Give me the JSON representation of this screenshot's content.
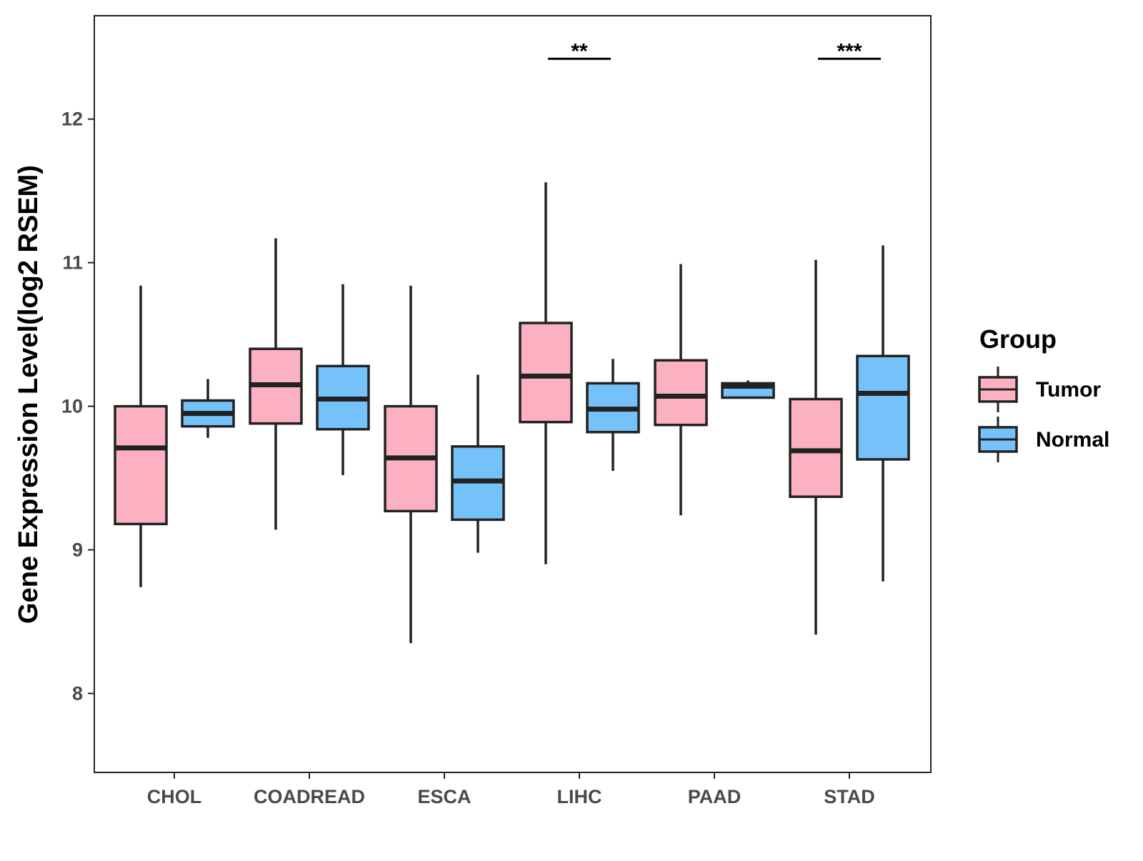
{
  "chart_data": {
    "type": "boxplot",
    "title": "",
    "xlabel": "",
    "ylabel": "Gene Expression Level(log2 RSEM)",
    "ylim": [
      7.45,
      12.72
    ],
    "yticks": [
      8,
      9,
      10,
      11,
      12
    ],
    "categories": [
      "CHOL",
      "COADREAD",
      "ESCA",
      "LIHC",
      "PAAD",
      "STAD"
    ],
    "legend": {
      "title": "Group",
      "position": "right",
      "entries": [
        "Tumor",
        "Normal"
      ]
    },
    "colors": {
      "Tumor": "#FBB1C1",
      "Normal": "#75C1F9",
      "stroke": "#222222"
    },
    "series": [
      {
        "name": "Tumor",
        "boxes": [
          {
            "category": "CHOL",
            "min": 8.74,
            "q1": 9.18,
            "median": 9.71,
            "q3": 10.0,
            "max": 10.84
          },
          {
            "category": "COADREAD",
            "min": 9.14,
            "q1": 9.88,
            "median": 10.15,
            "q3": 10.4,
            "max": 11.17
          },
          {
            "category": "ESCA",
            "min": 8.35,
            "q1": 9.27,
            "median": 9.64,
            "q3": 10.0,
            "max": 10.84
          },
          {
            "category": "LIHC",
            "min": 8.9,
            "q1": 9.89,
            "median": 10.21,
            "q3": 10.58,
            "max": 11.56
          },
          {
            "category": "PAAD",
            "min": 9.24,
            "q1": 9.87,
            "median": 10.07,
            "q3": 10.32,
            "max": 10.99
          },
          {
            "category": "STAD",
            "min": 8.41,
            "q1": 9.37,
            "median": 9.69,
            "q3": 10.05,
            "max": 11.02
          }
        ]
      },
      {
        "name": "Normal",
        "boxes": [
          {
            "category": "CHOL",
            "min": 9.78,
            "q1": 9.86,
            "median": 9.95,
            "q3": 10.04,
            "max": 10.19
          },
          {
            "category": "COADREAD",
            "min": 9.52,
            "q1": 9.84,
            "median": 10.05,
            "q3": 10.28,
            "max": 10.85
          },
          {
            "category": "ESCA",
            "min": 8.98,
            "q1": 9.21,
            "median": 9.48,
            "q3": 9.72,
            "max": 10.22
          },
          {
            "category": "LIHC",
            "min": 9.55,
            "q1": 9.82,
            "median": 9.98,
            "q3": 10.16,
            "max": 10.33
          },
          {
            "category": "PAAD",
            "min": 10.06,
            "q1": 10.06,
            "median": 10.14,
            "q3": 10.16,
            "max": 10.18
          },
          {
            "category": "STAD",
            "min": 8.78,
            "q1": 9.63,
            "median": 10.09,
            "q3": 10.35,
            "max": 11.12
          }
        ]
      }
    ],
    "significance": [
      {
        "category": "LIHC",
        "label": "**",
        "y": 12.42
      },
      {
        "category": "STAD",
        "label": "***",
        "y": 12.42
      }
    ]
  }
}
